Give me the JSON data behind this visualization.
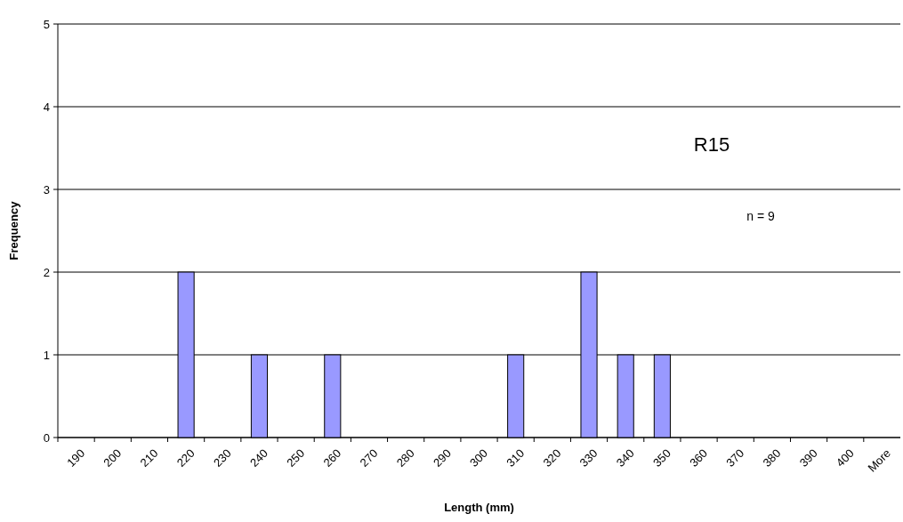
{
  "chart_data": {
    "type": "bar",
    "xlabel": "Length (mm)",
    "ylabel": "Frequency",
    "categories": [
      "190",
      "200",
      "210",
      "220",
      "230",
      "240",
      "250",
      "260",
      "270",
      "280",
      "290",
      "300",
      "310",
      "320",
      "330",
      "340",
      "350",
      "360",
      "370",
      "380",
      "390",
      "400",
      "More"
    ],
    "values": [
      0,
      0,
      0,
      2,
      0,
      1,
      0,
      1,
      0,
      0,
      0,
      0,
      1,
      0,
      2,
      1,
      1,
      0,
      0,
      0,
      0,
      0,
      0
    ],
    "color": "#9999ff",
    "ylim": [
      0,
      5
    ],
    "yticks": [
      0,
      1,
      2,
      3,
      4,
      5
    ],
    "grid": "y",
    "annotations": [
      "R15",
      "n = 9"
    ]
  }
}
